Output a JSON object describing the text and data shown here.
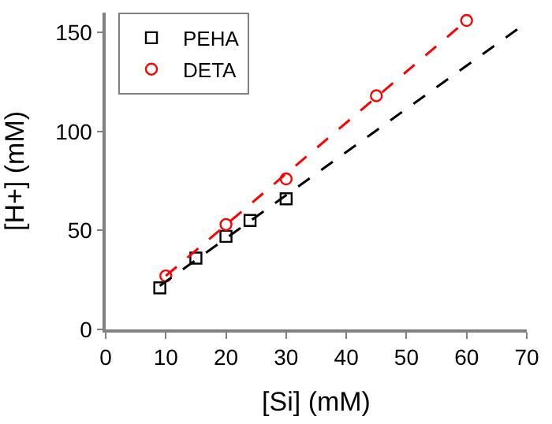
{
  "chart_data": {
    "type": "scatter",
    "xlabel": "[Si] (mM)",
    "ylabel": "[H+] (mM)",
    "xlim": [
      0,
      70
    ],
    "xticks": [
      0,
      10,
      20,
      30,
      40,
      50,
      60,
      70
    ],
    "ylim": [
      0,
      160
    ],
    "yticks": [
      0,
      50,
      100,
      150
    ],
    "legend": "top left",
    "series": [
      {
        "name": "PEHA",
        "color": "#000000",
        "marker": "square",
        "x": [
          9,
          15,
          20,
          24,
          30
        ],
        "values": [
          21,
          36,
          47,
          55,
          66
        ]
      },
      {
        "name": "DETA",
        "color": "#ff0000",
        "marker": "circle",
        "x": [
          10,
          20,
          30,
          45,
          60
        ],
        "values": [
          27,
          53,
          76,
          118,
          156
        ]
      },
      {
        "type": "line",
        "color": "#000000",
        "marker": "none",
        "line_style": "dashed",
        "x": [
          9,
          70
        ],
        "values": [
          22,
          155
        ]
      },
      {
        "type": "line",
        "color": "#ff0000",
        "marker": "none",
        "line_style": "dashed",
        "x": [
          10,
          60
        ],
        "values": [
          27,
          156
        ]
      }
    ]
  }
}
